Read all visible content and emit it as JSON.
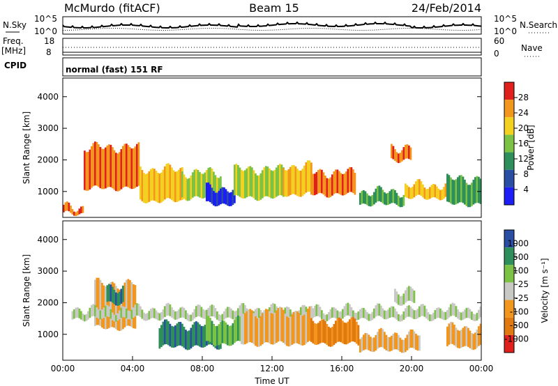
{
  "header": {
    "station": "McMurdo (fitACF)",
    "beam": "Beam 15",
    "date": "24/Feb/2014"
  },
  "status": {
    "nsky_label": "N.Sky",
    "nsky_ticks": [
      "10^5",
      "10^0"
    ],
    "nsearch_label": "N.Search",
    "nsearch_ticks": [
      "10^5",
      "10^0"
    ],
    "freq_label": "Freq.",
    "freq_unit": "[MHz]",
    "freq_ticks": [
      "18",
      "8"
    ],
    "nave_label": "Nave",
    "nave_ticks": [
      "60",
      "0"
    ],
    "cpid_label": "CPID",
    "cpid_text": "normal (fast) 151 RF"
  },
  "chart_data": [
    {
      "type": "heatmap",
      "name": "power",
      "ylabel": "Slant Range [km]",
      "y_ticks": [
        "4000",
        "3000",
        "2000",
        "1000"
      ],
      "ylim": [
        180,
        4590
      ],
      "colorbar_label": "Power [dB]",
      "colorbar_ticks": [
        "28",
        "24",
        "20",
        "16",
        "12",
        "8",
        "4"
      ],
      "colors": [
        "#e0201c",
        "#f3961e",
        "#f4d020",
        "#7cc345",
        "#2f8f5b",
        "#2b4ea5",
        "#1c1ef5"
      ],
      "regions": [
        {
          "t0": 0.0,
          "t1": 1.2,
          "r0": 300,
          "r1": 500,
          "level": 1
        },
        {
          "t0": 1.2,
          "t1": 4.4,
          "r0": 1100,
          "r1": 2400,
          "level": 1
        },
        {
          "t0": 4.4,
          "t1": 6.8,
          "r0": 700,
          "r1": 1700,
          "level": 2
        },
        {
          "t0": 6.8,
          "t1": 9.0,
          "r0": 800,
          "r1": 1600,
          "level": 3
        },
        {
          "t0": 8.2,
          "t1": 9.8,
          "r0": 600,
          "r1": 1100,
          "level": 6
        },
        {
          "t0": 9.8,
          "t1": 12.6,
          "r0": 800,
          "r1": 1700,
          "level": 3
        },
        {
          "t0": 12.6,
          "t1": 14.2,
          "r0": 900,
          "r1": 1800,
          "level": 2
        },
        {
          "t0": 14.2,
          "t1": 16.8,
          "r0": 900,
          "r1": 1600,
          "level": 1
        },
        {
          "t0": 17.0,
          "t1": 19.6,
          "r0": 600,
          "r1": 1000,
          "level": 4
        },
        {
          "t0": 18.8,
          "t1": 20.0,
          "r0": 2000,
          "r1": 2400,
          "level": 1
        },
        {
          "t0": 19.6,
          "t1": 22.0,
          "r0": 800,
          "r1": 1200,
          "level": 2
        },
        {
          "t0": 22.0,
          "t1": 24.0,
          "r0": 600,
          "r1": 1400,
          "level": 4
        }
      ]
    },
    {
      "type": "heatmap",
      "name": "velocity",
      "ylabel": "Slant Range [km]",
      "y_ticks": [
        "4000",
        "3000",
        "2000",
        "1000"
      ],
      "ylim": [
        180,
        4590
      ],
      "colorbar_label": "Velocity [m s⁻¹]",
      "colorbar_ticks": [
        "1000",
        "500",
        "100",
        "25",
        "-25",
        "-100",
        "-500",
        "-1000"
      ],
      "colors": [
        "#2b4ea5",
        "#2f8f5b",
        "#7cc345",
        "#c8c8c4",
        "#f3961e",
        "#e07a10",
        "#e0201c"
      ],
      "x_ticks": [
        "00:00",
        "04:00",
        "08:00",
        "12:00",
        "16:00",
        "20:00",
        "00:00"
      ],
      "xlabel": "Time UT",
      "xlim": [
        0,
        24
      ],
      "regions": [
        {
          "t0": 1.8,
          "t1": 4.2,
          "r0": 1200,
          "r1": 2600,
          "level": 4
        },
        {
          "t0": 2.5,
          "t1": 3.5,
          "r0": 2000,
          "r1": 2500,
          "level": 1
        },
        {
          "t0": 0.5,
          "t1": 24.0,
          "r0": 1500,
          "r1": 1800,
          "level": 3
        },
        {
          "t0": 5.5,
          "t1": 9.0,
          "r0": 600,
          "r1": 1300,
          "level": 1
        },
        {
          "t0": 8.2,
          "t1": 10.2,
          "r0": 700,
          "r1": 1400,
          "level": 2
        },
        {
          "t0": 10.2,
          "t1": 14.2,
          "r0": 700,
          "r1": 1700,
          "level": 4
        },
        {
          "t0": 14.2,
          "t1": 17.0,
          "r0": 700,
          "r1": 1400,
          "level": 5
        },
        {
          "t0": 17.0,
          "t1": 20.5,
          "r0": 500,
          "r1": 1000,
          "level": 4
        },
        {
          "t0": 19.0,
          "t1": 20.2,
          "r0": 2000,
          "r1": 2400,
          "level": 3
        },
        {
          "t0": 22.0,
          "t1": 24.0,
          "r0": 600,
          "r1": 1200,
          "level": 4
        }
      ]
    }
  ]
}
